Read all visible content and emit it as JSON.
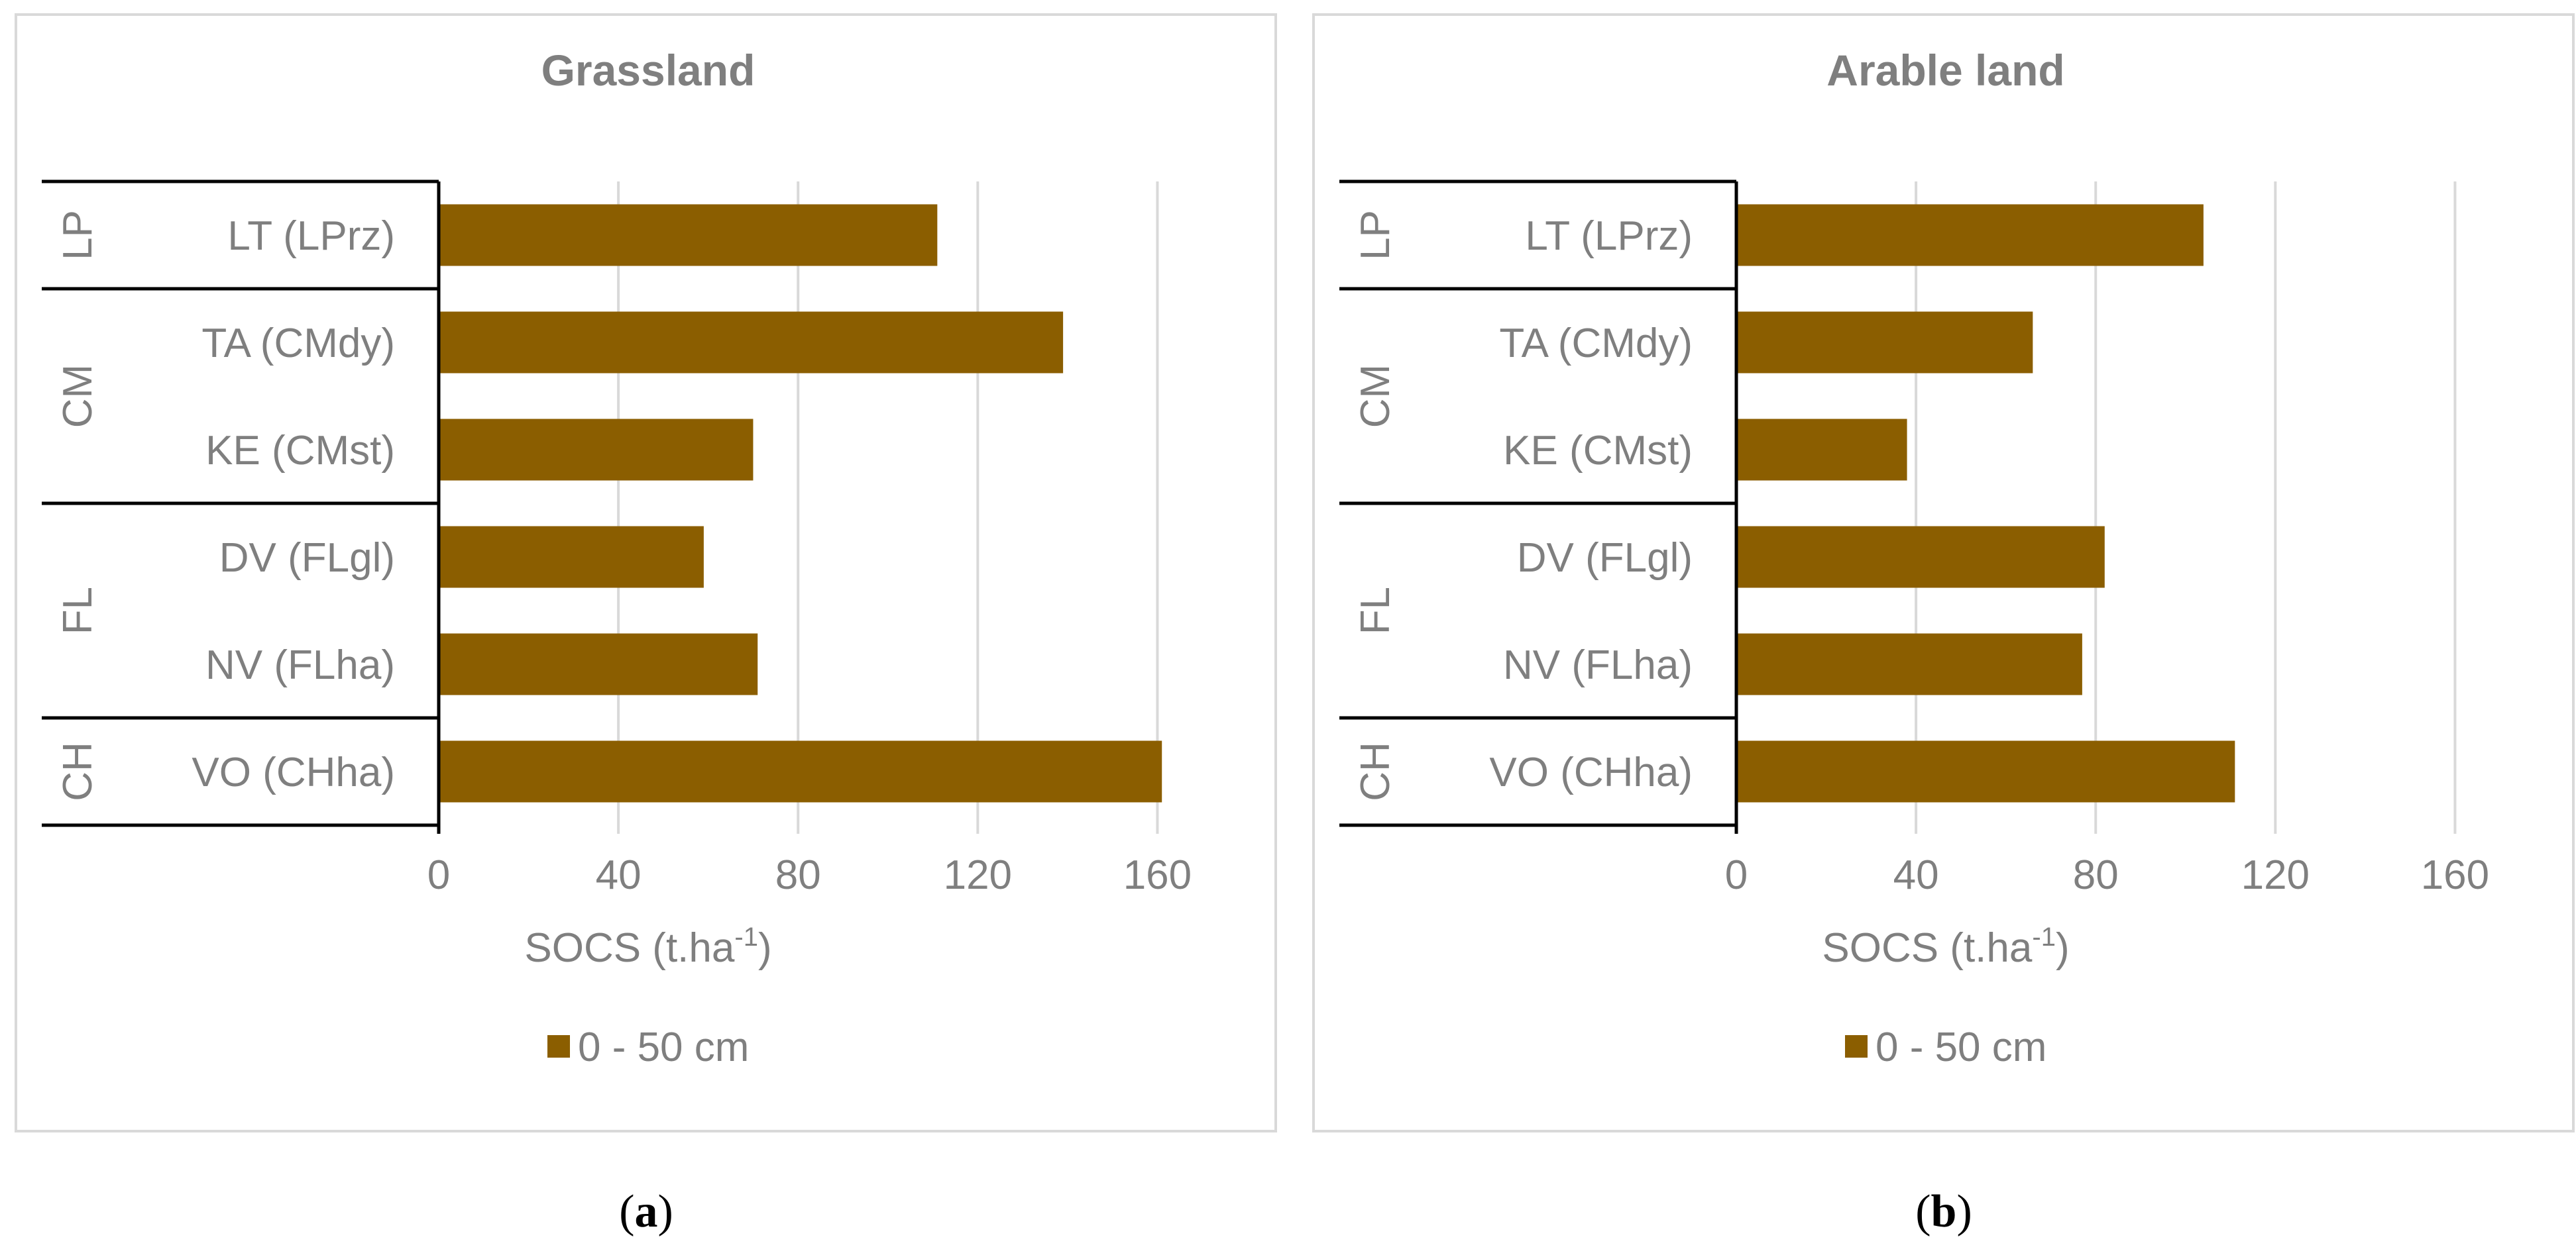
{
  "chart_data": [
    {
      "type": "bar",
      "orientation": "horizontal",
      "title": "Grassland",
      "xlabel": "SOCS (t.ha",
      "xlabel_sup": "-1",
      "xlabel_end": ")",
      "xlim": [
        0,
        180
      ],
      "xticks": [
        "0",
        "40",
        "80",
        "120",
        "160"
      ],
      "grid": true,
      "legend_position": "bottom",
      "categories": [
        "LT (LPrz)",
        "TA (CMdy)",
        "KE (CMst)",
        "DV (FLgl)",
        "NV (FLha)",
        "VO (CHha)"
      ],
      "groups": [
        {
          "label": "LP",
          "count": 1
        },
        {
          "label": "CM",
          "count": 2
        },
        {
          "label": "FL",
          "count": 2
        },
        {
          "label": "CH",
          "count": 1
        }
      ],
      "series": [
        {
          "name": "0 - 50 cm",
          "color": "#8B5E00",
          "values": [
            111,
            139,
            70,
            59,
            71,
            161
          ]
        }
      ]
    },
    {
      "type": "bar",
      "orientation": "horizontal",
      "title": "Arable land",
      "xlabel": "SOCS (t.ha",
      "xlabel_sup": "-1",
      "xlabel_end": ")",
      "xlim": [
        0,
        180
      ],
      "xticks": [
        "0",
        "40",
        "80",
        "120",
        "160"
      ],
      "grid": true,
      "legend_position": "bottom",
      "categories": [
        "LT (LPrz)",
        "TA (CMdy)",
        "KE (CMst)",
        "DV (FLgl)",
        "NV (FLha)",
        "VO (CHha)"
      ],
      "groups": [
        {
          "label": "LP",
          "count": 1
        },
        {
          "label": "CM",
          "count": 2
        },
        {
          "label": "FL",
          "count": 2
        },
        {
          "label": "CH",
          "count": 1
        }
      ],
      "series": [
        {
          "name": "0 - 50 cm",
          "color": "#8B5E00",
          "values": [
            104,
            66,
            38,
            82,
            77,
            111
          ]
        }
      ]
    }
  ],
  "captions": [
    {
      "open": "(",
      "letter": "a",
      "close": ")"
    },
    {
      "open": "(",
      "letter": "b",
      "close": ")"
    }
  ]
}
